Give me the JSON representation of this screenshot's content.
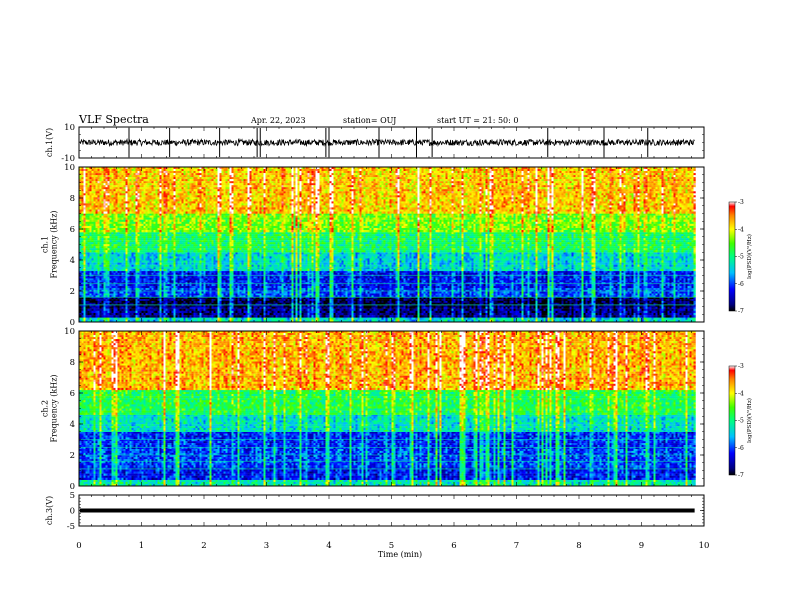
{
  "header": {
    "title": "VLF Spectra",
    "date": "Apr. 22, 2023",
    "station": "station= OUJ",
    "start_ut": "start  UT =   21: 50: 0"
  },
  "chart_data": [
    {
      "id": "ch1_waveform",
      "type": "line",
      "ylabel": "ch.1(V)",
      "xlim": [
        0,
        10
      ],
      "ylim": [
        -10,
        10
      ],
      "yticks": [
        "10",
        "-10"
      ],
      "baseline": 0,
      "noise_amplitude": 2,
      "spike_times": [
        0.8,
        1.45,
        2.25,
        2.85,
        2.9,
        3.95,
        4.0,
        4.8,
        5.4,
        5.65,
        7.5,
        8.4,
        9.1
      ],
      "color": "#000000"
    },
    {
      "id": "ch1_spectrogram",
      "type": "heatmap",
      "ylabel": "ch.1\nFrequency (kHz)",
      "xlim": [
        0,
        9.85
      ],
      "ylim": [
        0,
        10
      ],
      "yticks": [
        "0",
        "2",
        "4",
        "6",
        "8",
        "10"
      ],
      "bands": [
        {
          "f_min": 0.0,
          "f_max": 0.3,
          "log_psd": -5.4
        },
        {
          "f_min": 0.3,
          "f_max": 1.0,
          "log_psd": -6.7
        },
        {
          "f_min": 1.0,
          "f_max": 1.6,
          "log_psd": -6.9
        },
        {
          "f_min": 1.6,
          "f_max": 2.2,
          "log_psd": -6.0
        },
        {
          "f_min": 2.2,
          "f_max": 3.3,
          "log_psd": -6.2
        },
        {
          "f_min": 3.3,
          "f_max": 4.5,
          "log_psd": -5.4
        },
        {
          "f_min": 4.5,
          "f_max": 5.8,
          "log_psd": -4.9
        },
        {
          "f_min": 5.8,
          "f_max": 7.0,
          "log_psd": -4.4
        },
        {
          "f_min": 7.0,
          "f_max": 10.0,
          "log_psd": -3.8
        }
      ],
      "colorbar": {
        "label": "log(PSD)(V²/Hz)",
        "range": [
          -7,
          -3
        ],
        "ticks": [
          "-3",
          "-4",
          "-5",
          "-6",
          "-7"
        ]
      }
    },
    {
      "id": "ch2_spectrogram",
      "type": "heatmap",
      "ylabel": "ch.2\nFrequency (kHz)",
      "xlim": [
        0,
        9.85
      ],
      "ylim": [
        0,
        10
      ],
      "yticks": [
        "0",
        "2",
        "4",
        "6",
        "8",
        "10"
      ],
      "bands": [
        {
          "f_min": 0.0,
          "f_max": 0.4,
          "log_psd": -5.2
        },
        {
          "f_min": 0.4,
          "f_max": 1.2,
          "log_psd": -6.2
        },
        {
          "f_min": 1.2,
          "f_max": 2.4,
          "log_psd": -6.0
        },
        {
          "f_min": 2.4,
          "f_max": 3.5,
          "log_psd": -6.1
        },
        {
          "f_min": 3.5,
          "f_max": 4.6,
          "log_psd": -5.3
        },
        {
          "f_min": 4.6,
          "f_max": 6.2,
          "log_psd": -4.8
        },
        {
          "f_min": 6.2,
          "f_max": 10.0,
          "log_psd": -3.7
        }
      ],
      "colorbar": {
        "label": "log(PSD)(V²/Hz)",
        "range": [
          -7,
          -3
        ],
        "ticks": [
          "-3",
          "-4",
          "-5",
          "-6",
          "-7"
        ]
      }
    },
    {
      "id": "ch3_waveform",
      "type": "line",
      "ylabel": "ch.3(V)",
      "xlim": [
        0,
        10
      ],
      "ylim": [
        -5,
        5
      ],
      "yticks": [
        "5",
        "0",
        "-5"
      ],
      "baseline": 0,
      "color": "#000000"
    }
  ],
  "x_axis": {
    "label": "Time (min)",
    "range": [
      0,
      10
    ],
    "ticks": [
      "0",
      "1",
      "2",
      "3",
      "4",
      "5",
      "6",
      "7",
      "8",
      "9",
      "10"
    ]
  }
}
